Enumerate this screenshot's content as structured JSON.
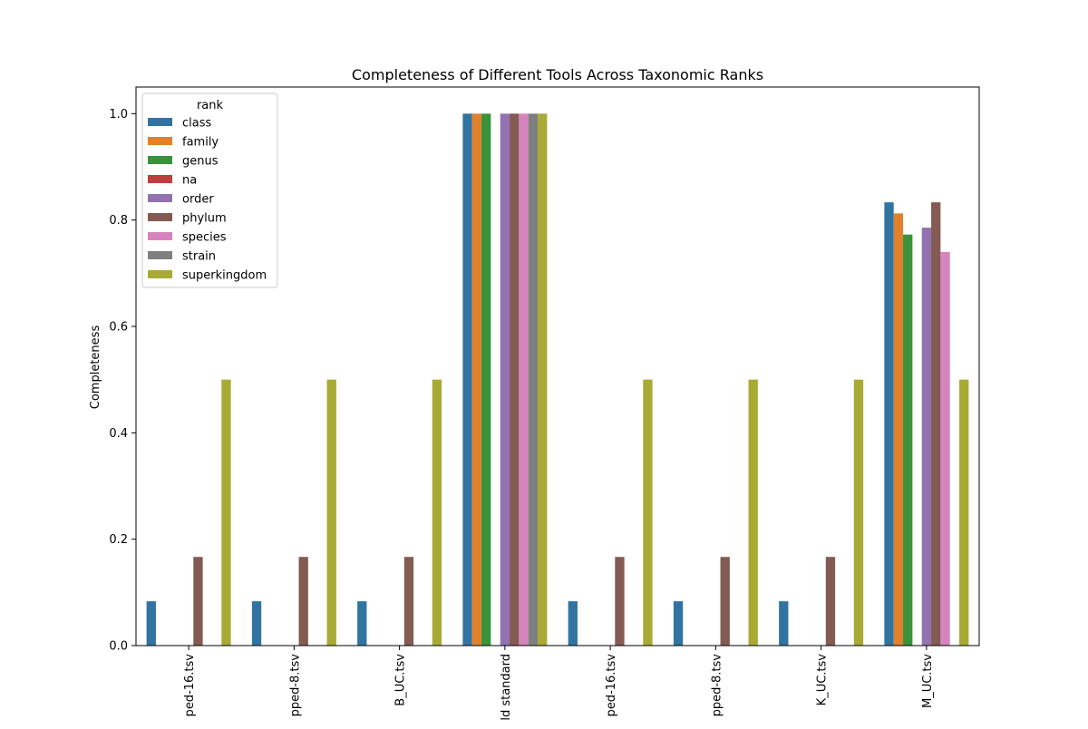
{
  "chart_data": {
    "type": "bar",
    "title": "Completeness of Different Tools Across Taxonomic Ranks",
    "xlabel": "",
    "ylabel": "Completeness",
    "ylim": [
      0,
      1.05
    ],
    "yticks": [
      "0.0",
      "0.2",
      "0.4",
      "0.6",
      "0.8",
      "1.0"
    ],
    "ytick_values": [
      0,
      0.2,
      0.4,
      0.6,
      0.8,
      1.0
    ],
    "categories": [
      "ped-16.tsv",
      "pped-8.tsv",
      "B_UC.tsv",
      "ld standard",
      "ped-16.tsv",
      "pped-8.tsv",
      "K_UC.tsv",
      "M_UC.tsv"
    ],
    "legend": {
      "title": "rank",
      "placement": "upper-left"
    },
    "grid": false,
    "series": [
      {
        "name": "class",
        "color": "#3274a1",
        "values": [
          0.0833,
          0.0833,
          0.0833,
          1.0,
          0.0833,
          0.0833,
          0.0833,
          0.8333
        ]
      },
      {
        "name": "family",
        "color": "#e1812c",
        "values": [
          0,
          0,
          0,
          1.0,
          0,
          0,
          0,
          0.8125
        ]
      },
      {
        "name": "genus",
        "color": "#3a923a",
        "values": [
          0,
          0,
          0,
          1.0,
          0,
          0,
          0,
          0.7727
        ]
      },
      {
        "name": "na",
        "color": "#c03d3e",
        "values": [
          0,
          0,
          0,
          0,
          0,
          0,
          0,
          0
        ]
      },
      {
        "name": "order",
        "color": "#9372b2",
        "values": [
          0,
          0,
          0,
          1.0,
          0,
          0,
          0,
          0.7857
        ]
      },
      {
        "name": "phylum",
        "color": "#845b53",
        "values": [
          0.1667,
          0.1667,
          0.1667,
          1.0,
          0.1667,
          0.1667,
          0.1667,
          0.8333
        ]
      },
      {
        "name": "species",
        "color": "#d684bd",
        "values": [
          0,
          0,
          0,
          1.0,
          0,
          0,
          0,
          0.74
        ]
      },
      {
        "name": "strain",
        "color": "#7f7f7f",
        "values": [
          0,
          0,
          0,
          1.0,
          0,
          0,
          0,
          0
        ]
      },
      {
        "name": "superkingdom",
        "color": "#a9aa35",
        "values": [
          0.5,
          0.5,
          0.5,
          1.0,
          0.5,
          0.5,
          0.5,
          0.5
        ]
      }
    ]
  }
}
